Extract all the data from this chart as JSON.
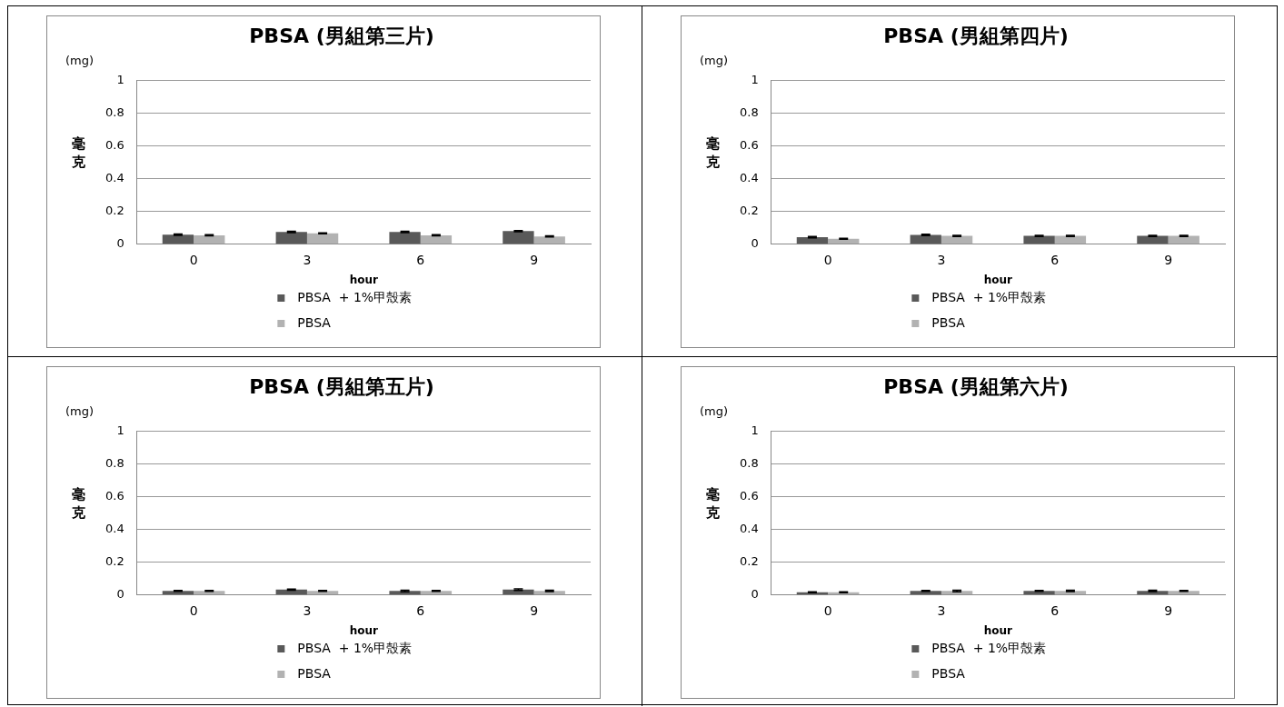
{
  "chart_data": [
    {
      "type": "bar",
      "title": "PBSA (男組第三片)",
      "xlabel": "hour",
      "ylabel": "毫克",
      "annotations": [
        "(mg)"
      ],
      "categories": [
        "0",
        "3",
        "6",
        "9"
      ],
      "series": [
        {
          "name": "PBSA  + 1%甲殼素",
          "color": "#595959",
          "values": [
            0.058,
            0.075,
            0.075,
            0.08
          ],
          "errors": [
            0.004,
            0.004,
            0.004,
            0.004
          ]
        },
        {
          "name": "PBSA",
          "color": "#b2b2b2",
          "values": [
            0.055,
            0.067,
            0.055,
            0.048
          ],
          "errors": [
            0.004,
            0.003,
            0.003,
            0.004
          ]
        }
      ],
      "ylim": [
        0,
        1
      ],
      "yticks": [
        0,
        0.2,
        0.4,
        0.6,
        0.8,
        1
      ],
      "grid": "y",
      "legend": "bottom"
    },
    {
      "type": "bar",
      "title": "PBSA (男組第四片)",
      "xlabel": "hour",
      "ylabel": "毫克",
      "annotations": [
        "(mg)"
      ],
      "categories": [
        "0",
        "3",
        "6",
        "9"
      ],
      "series": [
        {
          "name": "PBSA  + 1%甲殼素",
          "color": "#595959",
          "values": [
            0.043,
            0.057,
            0.051,
            0.051
          ],
          "errors": [
            0.004,
            0.004,
            0.003,
            0.004
          ]
        },
        {
          "name": "PBSA",
          "color": "#b2b2b2",
          "values": [
            0.034,
            0.051,
            0.051,
            0.051
          ],
          "errors": [
            0.003,
            0.004,
            0.004,
            0.003
          ]
        }
      ],
      "ylim": [
        0,
        1
      ],
      "yticks": [
        0,
        0.2,
        0.4,
        0.6,
        0.8,
        1
      ],
      "grid": "y",
      "legend": "bottom"
    },
    {
      "type": "bar",
      "title": "PBSA (男組第五片)",
      "xlabel": "hour",
      "ylabel": "毫克",
      "annotations": [
        "(mg)"
      ],
      "categories": [
        "0",
        "3",
        "6",
        "9"
      ],
      "series": [
        {
          "name": "PBSA  + 1%甲殼素",
          "color": "#595959",
          "values": [
            0.025,
            0.033,
            0.025,
            0.033
          ],
          "errors": [
            0.003,
            0.003,
            0.005,
            0.005
          ]
        },
        {
          "name": "PBSA",
          "color": "#b2b2b2",
          "values": [
            0.025,
            0.025,
            0.025,
            0.025
          ],
          "errors": [
            0.003,
            0.003,
            0.003,
            0.004
          ]
        }
      ],
      "ylim": [
        0,
        1
      ],
      "yticks": [
        0,
        0.2,
        0.4,
        0.6,
        0.8,
        1
      ],
      "grid": "y",
      "legend": "bottom"
    },
    {
      "type": "bar",
      "title": "PBSA (男組第六片)",
      "xlabel": "hour",
      "ylabel": "毫克",
      "annotations": [
        "(mg)"
      ],
      "categories": [
        "0",
        "3",
        "6",
        "9"
      ],
      "series": [
        {
          "name": "PBSA  + 1%甲殼素",
          "color": "#595959",
          "values": [
            0.017,
            0.025,
            0.025,
            0.025
          ],
          "errors": [
            0.003,
            0.003,
            0.003,
            0.004
          ]
        },
        {
          "name": "PBSA",
          "color": "#b2b2b2",
          "values": [
            0.017,
            0.025,
            0.025,
            0.025
          ],
          "errors": [
            0.003,
            0.005,
            0.004,
            0.003
          ]
        }
      ],
      "ylim": [
        0,
        1
      ],
      "yticks": [
        0,
        0.2,
        0.4,
        0.6,
        0.8,
        1
      ],
      "grid": "y",
      "legend": "bottom"
    }
  ]
}
